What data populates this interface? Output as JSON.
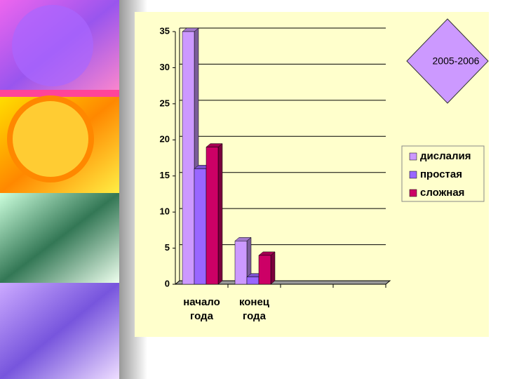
{
  "chart_data": {
    "type": "bar",
    "annotation": "2005-2006",
    "categories": [
      "начало года",
      "конец года",
      null,
      null
    ],
    "series": [
      {
        "name": "дислалия",
        "color": "#cc99ff",
        "values": [
          35,
          6,
          null,
          null
        ]
      },
      {
        "name": "простая",
        "color": "#9966ff",
        "values": [
          16,
          1,
          null,
          null
        ]
      },
      {
        "name": "сложная",
        "color": "#cc0066",
        "values": [
          19,
          4,
          null,
          null
        ]
      }
    ],
    "ylim": [
      0,
      35
    ],
    "yticks": [
      0,
      5,
      10,
      15,
      20,
      25,
      30,
      35
    ],
    "grid": true,
    "legend": "right"
  }
}
